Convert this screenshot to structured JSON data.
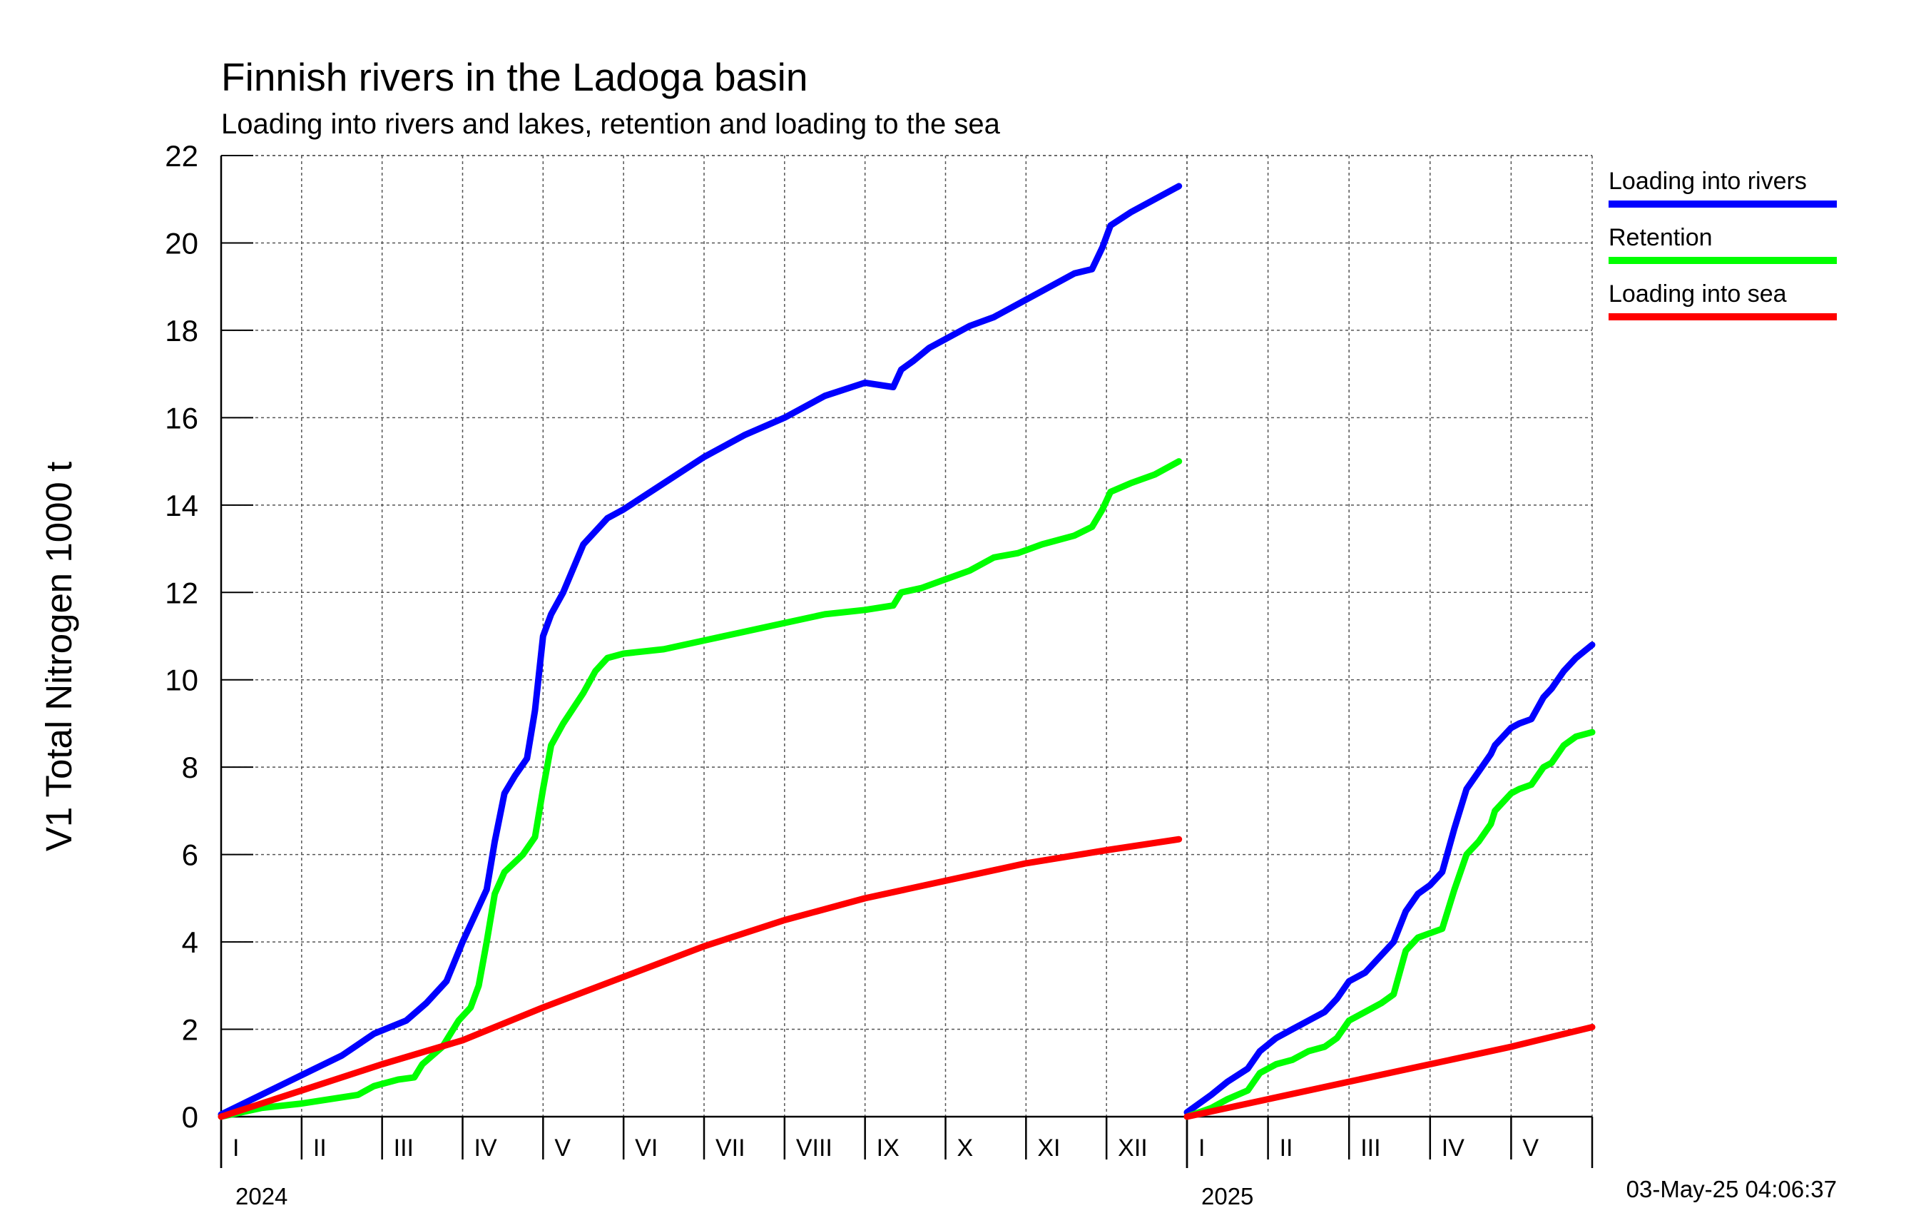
{
  "chart_data": {
    "type": "line",
    "title": "Finnish rivers in the Ladoga basin",
    "subtitle": "Loading into rivers and lakes, retention and loading to the sea",
    "ylabel": "V1 Total Nitrogen 1000 t",
    "ylim": [
      0,
      22
    ],
    "yticks": [
      "0",
      "2",
      "4",
      "6",
      "8",
      "10",
      "12",
      "14",
      "16",
      "18",
      "20",
      "22"
    ],
    "grid": true,
    "legend_position": "top-right",
    "timestamp": "03-May-25 04:06:37",
    "periods": [
      {
        "year_label": "2024",
        "months": [
          "I",
          "II",
          "III",
          "IV",
          "V",
          "VI",
          "VII",
          "VIII",
          "IX",
          "X",
          "XI",
          "XII"
        ],
        "series": [
          {
            "name": "Loading into rivers",
            "color": "#0000ff",
            "x": [
              0,
              1,
              1.5,
              1.9,
              2.3,
              2.55,
              2.8,
              3.0,
              3.3,
              3.4,
              3.52,
              3.65,
              3.8,
              3.9,
              4.0,
              4.1,
              4.25,
              4.5,
              4.65,
              4.8,
              5.0,
              5.5,
              6.0,
              6.5,
              7.0,
              7.5,
              8.0,
              8.35,
              8.45,
              8.6,
              8.8,
              9.0,
              9.3,
              9.6,
              9.9,
              10.2,
              10.6,
              10.82,
              10.95,
              11.05,
              11.3,
              11.6,
              11.9
            ],
            "y": [
              0.05,
              0.95,
              1.4,
              1.9,
              2.2,
              2.6,
              3.1,
              4.0,
              5.2,
              6.3,
              7.4,
              7.8,
              8.2,
              9.3,
              11.0,
              11.5,
              12.0,
              13.1,
              13.4,
              13.7,
              13.9,
              14.5,
              15.1,
              15.6,
              16.0,
              16.5,
              16.8,
              16.7,
              17.1,
              17.3,
              17.6,
              17.8,
              18.1,
              18.3,
              18.6,
              18.9,
              19.3,
              19.4,
              19.9,
              20.4,
              20.7,
              21.0,
              21.3
            ]
          },
          {
            "name": "Retention",
            "color": "#00ff00",
            "x": [
              0,
              0.5,
              1.0,
              1.7,
              1.9,
              2.2,
              2.4,
              2.5,
              2.75,
              2.95,
              3.1,
              3.2,
              3.3,
              3.4,
              3.52,
              3.75,
              3.9,
              4.0,
              4.1,
              4.25,
              4.5,
              4.65,
              4.8,
              5.0,
              5.5,
              6.0,
              6.5,
              7.0,
              7.5,
              8.0,
              8.35,
              8.45,
              8.7,
              9.0,
              9.3,
              9.6,
              9.9,
              10.2,
              10.6,
              10.82,
              10.95,
              11.05,
              11.3,
              11.6,
              11.9
            ],
            "y": [
              0.0,
              0.2,
              0.3,
              0.5,
              0.7,
              0.85,
              0.9,
              1.2,
              1.6,
              2.2,
              2.5,
              3.0,
              4.0,
              5.1,
              5.6,
              6.0,
              6.4,
              7.5,
              8.5,
              9.0,
              9.7,
              10.2,
              10.5,
              10.6,
              10.7,
              10.9,
              11.1,
              11.3,
              11.5,
              11.6,
              11.7,
              12.0,
              12.1,
              12.3,
              12.5,
              12.8,
              12.9,
              13.1,
              13.3,
              13.5,
              13.9,
              14.3,
              14.5,
              14.7,
              15.0
            ]
          },
          {
            "name": "Loading into sea",
            "color": "#ff0000",
            "x": [
              0,
              1,
              2,
              3,
              4,
              5,
              6,
              7,
              8,
              9,
              10,
              11,
              11.9
            ],
            "y": [
              0.0,
              0.6,
              1.2,
              1.75,
              2.5,
              3.2,
              3.9,
              4.5,
              5.0,
              5.4,
              5.8,
              6.1,
              6.35
            ]
          }
        ]
      },
      {
        "year_label": "2025",
        "months": [
          "I",
          "II",
          "III",
          "IV",
          "V"
        ],
        "series": [
          {
            "name": "Loading into rivers",
            "color": "#0000ff",
            "x": [
              0,
              0.3,
              0.5,
              0.75,
              0.9,
              1.1,
              1.3,
              1.5,
              1.7,
              1.85,
              2.0,
              2.2,
              2.4,
              2.55,
              2.7,
              2.85,
              3.0,
              3.15,
              3.3,
              3.45,
              3.6,
              3.75,
              3.8,
              4.0,
              4.1,
              4.25,
              4.4,
              4.5,
              4.65,
              4.8,
              5.0
            ],
            "y": [
              0.1,
              0.5,
              0.8,
              1.1,
              1.5,
              1.8,
              2.0,
              2.2,
              2.4,
              2.7,
              3.1,
              3.3,
              3.7,
              4.0,
              4.7,
              5.1,
              5.3,
              5.6,
              6.6,
              7.5,
              7.9,
              8.3,
              8.5,
              8.9,
              9.0,
              9.1,
              9.6,
              9.8,
              10.2,
              10.5,
              10.8
            ]
          },
          {
            "name": "Retention",
            "color": "#00ff00",
            "x": [
              0,
              0.3,
              0.5,
              0.75,
              0.9,
              1.1,
              1.3,
              1.5,
              1.7,
              1.85,
              2.0,
              2.2,
              2.4,
              2.55,
              2.7,
              2.85,
              3.0,
              3.15,
              3.3,
              3.45,
              3.6,
              3.75,
              3.8,
              4.0,
              4.1,
              4.25,
              4.4,
              4.5,
              4.65,
              4.8,
              5.0
            ],
            "y": [
              0.0,
              0.2,
              0.4,
              0.6,
              1.0,
              1.2,
              1.3,
              1.5,
              1.6,
              1.8,
              2.2,
              2.4,
              2.6,
              2.8,
              3.8,
              4.1,
              4.2,
              4.3,
              5.2,
              6.0,
              6.3,
              6.7,
              7.0,
              7.4,
              7.5,
              7.6,
              8.0,
              8.1,
              8.5,
              8.7,
              8.8
            ]
          },
          {
            "name": "Loading into sea",
            "color": "#ff0000",
            "x": [
              0,
              1,
              2,
              3,
              4,
              5
            ],
            "y": [
              0.0,
              0.4,
              0.8,
              1.2,
              1.6,
              2.05
            ]
          }
        ]
      }
    ]
  }
}
